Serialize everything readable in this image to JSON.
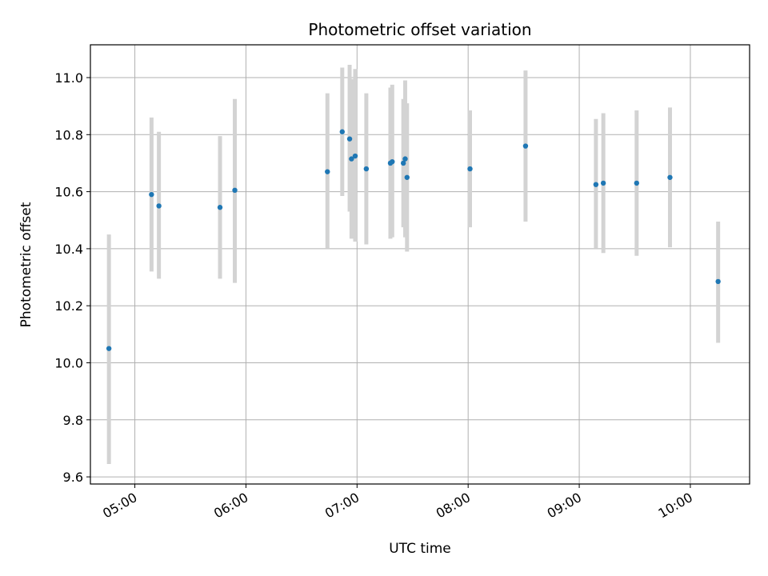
{
  "chart_data": {
    "type": "scatter",
    "title": "Photometric offset variation",
    "xlabel": "UTC time",
    "ylabel": "Photometric offset",
    "x_unit": "UTC time (HH:MM)",
    "xlim": [
      "04:36",
      "10:32"
    ],
    "ylim": [
      9.575,
      11.115
    ],
    "x_ticks": [
      "05:00",
      "06:00",
      "07:00",
      "08:00",
      "09:00",
      "10:00"
    ],
    "y_ticks": [
      "9.6",
      "9.8",
      "10.0",
      "10.2",
      "10.4",
      "10.6",
      "10.8",
      "11.0"
    ],
    "grid": true,
    "errorbar_color": "#d3d3d3",
    "point_color": "#1f77b4",
    "points": [
      {
        "x": "04:46",
        "y": 10.05,
        "lo": 9.645,
        "hi": 10.45
      },
      {
        "x": "05:09",
        "y": 10.59,
        "lo": 10.32,
        "hi": 10.86
      },
      {
        "x": "05:13",
        "y": 10.55,
        "lo": 10.295,
        "hi": 10.81
      },
      {
        "x": "05:46",
        "y": 10.545,
        "lo": 10.295,
        "hi": 10.795
      },
      {
        "x": "05:54",
        "y": 10.605,
        "lo": 10.28,
        "hi": 10.925
      },
      {
        "x": "06:44",
        "y": 10.67,
        "lo": 10.4,
        "hi": 10.945
      },
      {
        "x": "06:52",
        "y": 10.81,
        "lo": 10.585,
        "hi": 11.035
      },
      {
        "x": "06:56",
        "y": 10.785,
        "lo": 10.53,
        "hi": 11.045
      },
      {
        "x": "06:57",
        "y": 10.715,
        "lo": 10.435,
        "hi": 10.995
      },
      {
        "x": "06:59",
        "y": 10.725,
        "lo": 10.425,
        "hi": 11.03
      },
      {
        "x": "07:05",
        "y": 10.68,
        "lo": 10.415,
        "hi": 10.945
      },
      {
        "x": "07:18",
        "y": 10.7,
        "lo": 10.435,
        "hi": 10.965
      },
      {
        "x": "07:19",
        "y": 10.705,
        "lo": 10.44,
        "hi": 10.975
      },
      {
        "x": "07:25",
        "y": 10.7,
        "lo": 10.475,
        "hi": 10.925
      },
      {
        "x": "07:26",
        "y": 10.715,
        "lo": 10.44,
        "hi": 10.99
      },
      {
        "x": "07:27",
        "y": 10.65,
        "lo": 10.39,
        "hi": 10.91
      },
      {
        "x": "08:01",
        "y": 10.68,
        "lo": 10.475,
        "hi": 10.885
      },
      {
        "x": "08:31",
        "y": 10.76,
        "lo": 10.495,
        "hi": 11.025
      },
      {
        "x": "09:09",
        "y": 10.625,
        "lo": 10.4,
        "hi": 10.855
      },
      {
        "x": "09:13",
        "y": 10.63,
        "lo": 10.385,
        "hi": 10.875
      },
      {
        "x": "09:31",
        "y": 10.63,
        "lo": 10.375,
        "hi": 10.885
      },
      {
        "x": "09:49",
        "y": 10.65,
        "lo": 10.405,
        "hi": 10.895
      },
      {
        "x": "10:15",
        "y": 10.285,
        "lo": 10.07,
        "hi": 10.495
      }
    ]
  }
}
